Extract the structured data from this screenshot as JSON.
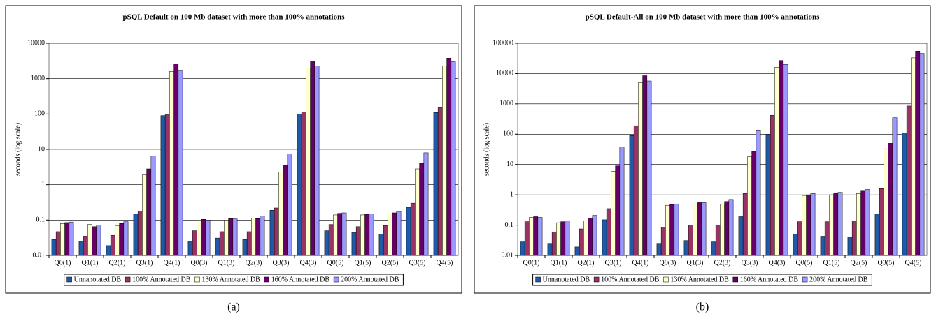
{
  "chart_data": [
    {
      "type": "bar",
      "title": "pSQL Default on 100 Mb dataset with more than 100% annotations",
      "ylabel": "seconds (log scale)",
      "caption": "(a)",
      "log_scale": true,
      "grid": true,
      "legend": "bottom",
      "categories": [
        "Q0(1)",
        "Q1(1)",
        "Q2(1)",
        "Q3(1)",
        "Q4(1)",
        "Q0(3)",
        "Q1(3)",
        "Q2(3)",
        "Q3(3)",
        "Q4(3)",
        "Q0(5)",
        "Q1(5)",
        "Q2(5)",
        "Q3(5)",
        "Q4(5)"
      ],
      "ylim": [
        0.01,
        10000
      ],
      "yticks": [
        0.01,
        0.1,
        1,
        10,
        100,
        1000,
        10000
      ],
      "series": [
        {
          "name": "Unnanotated DB",
          "color": "#1f5aa6",
          "values": [
            0.028,
            0.025,
            0.019,
            0.15,
            90,
            0.025,
            0.031,
            0.028,
            0.19,
            100,
            0.05,
            0.044,
            0.04,
            0.23,
            110
          ]
        },
        {
          "name": "100% Annotated DB",
          "color": "#993366",
          "values": [
            0.047,
            0.035,
            0.037,
            0.18,
            95,
            0.05,
            0.047,
            0.047,
            0.22,
            115,
            0.075,
            0.065,
            0.07,
            0.3,
            150
          ]
        },
        {
          "name": "130% Annotated DB",
          "color": "#ffffcc",
          "values": [
            0.08,
            0.075,
            0.07,
            1.9,
            1600,
            0.1,
            0.1,
            0.115,
            2.3,
            2000,
            0.14,
            0.14,
            0.15,
            2.8,
            2300
          ]
        },
        {
          "name": "160% Annotated DB",
          "color": "#660066",
          "values": [
            0.085,
            0.065,
            0.08,
            2.8,
            2600,
            0.105,
            0.11,
            0.11,
            3.5,
            3100,
            0.155,
            0.145,
            0.16,
            4,
            3800
          ]
        },
        {
          "name": "200% Annotated DB",
          "color": "#9999ff",
          "values": [
            0.088,
            0.072,
            0.09,
            6.5,
            1650,
            0.1,
            0.108,
            0.13,
            7.5,
            2300,
            0.16,
            0.15,
            0.175,
            8,
            3000
          ]
        }
      ]
    },
    {
      "type": "bar",
      "title": "pSQL Default-All on 100 Mb dataset with more than 100% annotations",
      "ylabel": "seconds (log scale)",
      "caption": "(b)",
      "log_scale": true,
      "grid": true,
      "legend": "bottom",
      "categories": [
        "Q0(1)",
        "Q1(1)",
        "Q2(1)",
        "Q3(1)",
        "Q4(1)",
        "Q0(3)",
        "Q1(3)",
        "Q2(3)",
        "Q3(3)",
        "Q4(3)",
        "Q0(5)",
        "Q1(5)",
        "Q2(5)",
        "Q3(5)",
        "Q4(5)"
      ],
      "ylim": [
        0.01,
        100000
      ],
      "yticks": [
        0.01,
        0.1,
        1,
        10,
        100,
        1000,
        10000,
        100000
      ],
      "series": [
        {
          "name": "Unnanotated DB",
          "color": "#1f5aa6",
          "values": [
            0.028,
            0.025,
            0.019,
            0.15,
            90,
            0.025,
            0.031,
            0.028,
            0.19,
            100,
            0.05,
            0.043,
            0.04,
            0.23,
            110
          ]
        },
        {
          "name": "100% Annotated DB",
          "color": "#993366",
          "values": [
            0.13,
            0.06,
            0.075,
            0.35,
            190,
            0.085,
            0.1,
            0.1,
            1.1,
            420,
            0.13,
            0.13,
            0.14,
            1.6,
            850
          ]
        },
        {
          "name": "130% Annotated DB",
          "color": "#ffffcc",
          "values": [
            0.18,
            0.12,
            0.14,
            6,
            5000,
            0.45,
            0.5,
            0.5,
            18,
            16000,
            0.95,
            1,
            1.1,
            33,
            33000
          ]
        },
        {
          "name": "160% Annotated DB",
          "color": "#660066",
          "values": [
            0.19,
            0.13,
            0.17,
            9,
            8500,
            0.48,
            0.55,
            0.6,
            27,
            27000,
            1,
            1.1,
            1.4,
            50,
            55000
          ]
        },
        {
          "name": "200% Annotated DB",
          "color": "#9999ff",
          "values": [
            0.18,
            0.14,
            0.21,
            38,
            5700,
            0.5,
            0.55,
            0.7,
            130,
            20000,
            1.1,
            1.2,
            1.5,
            350,
            46000
          ]
        }
      ]
    }
  ]
}
